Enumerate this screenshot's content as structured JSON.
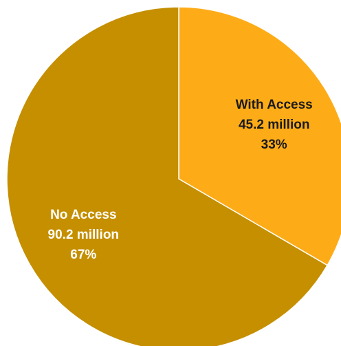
{
  "chart_data": {
    "type": "pie",
    "slices": [
      {
        "label": "With Access",
        "value_text": "45.2 million",
        "percent_text": "33%",
        "value": 45.2,
        "percent": 33,
        "color": "#fdac18",
        "text_color": "#1a1a1a"
      },
      {
        "label": "No Access",
        "value_text": "90.2 million",
        "percent_text": "67%",
        "value": 90.2,
        "percent": 67,
        "color": "#c58f00",
        "text_color": "#ffffff"
      }
    ],
    "start_angle_deg": 0,
    "direction": "clockwise",
    "legend": "none"
  }
}
